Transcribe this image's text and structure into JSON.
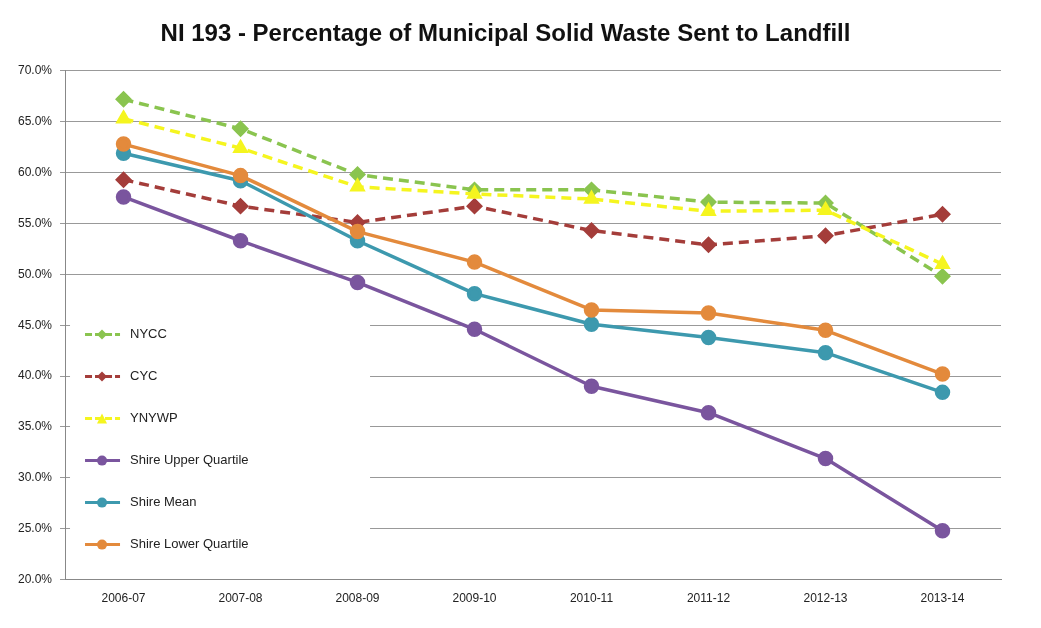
{
  "chart_data": {
    "type": "line",
    "title": "NI 193 - Percentage of Municipal Solid Waste Sent to Landfill",
    "categories": [
      "2006-07",
      "2007-08",
      "2008-09",
      "2009-10",
      "2010-11",
      "2011-12",
      "2012-13",
      "2013-14"
    ],
    "ylim": [
      20,
      70
    ],
    "yticks": [
      {
        "value": 20,
        "label": "20.0%"
      },
      {
        "value": 25,
        "label": "25.0%"
      },
      {
        "value": 30,
        "label": "30.0%"
      },
      {
        "value": 35,
        "label": "35.0%"
      },
      {
        "value": 40,
        "label": "40.0%"
      },
      {
        "value": 45,
        "label": "45.0%"
      },
      {
        "value": 50,
        "label": "50.0%"
      },
      {
        "value": 55,
        "label": "55.0%"
      },
      {
        "value": 60,
        "label": "60.0%"
      },
      {
        "value": 65,
        "label": "65.0%"
      },
      {
        "value": 70,
        "label": "70.0%"
      }
    ],
    "grid": "y",
    "legend": "bottom left",
    "series": [
      {
        "name": "NYCC",
        "color": "#8ac44f",
        "marker": "diamond",
        "line_style": "dashed",
        "values": [
          67.2,
          64.3,
          59.8,
          58.3,
          58.3,
          57.1,
          57.0,
          49.8
        ]
      },
      {
        "name": "CYC",
        "color": "#a43d3a",
        "marker": "diamond",
        "line_style": "dashed",
        "values": [
          59.3,
          56.7,
          55.1,
          56.7,
          54.3,
          52.9,
          53.8,
          55.9
        ]
      },
      {
        "name": "YNYWP",
        "color": "#f5f51f",
        "marker": "triangle",
        "line_style": "dashed",
        "values": [
          65.3,
          62.4,
          58.6,
          57.9,
          57.4,
          56.2,
          56.3,
          51.0
        ]
      },
      {
        "name": "Shire Upper Quartile",
        "color": "#7a559e",
        "marker": "circle",
        "line_style": "solid",
        "values": [
          57.6,
          53.3,
          49.2,
          44.6,
          39.0,
          36.4,
          31.9,
          24.8
        ]
      },
      {
        "name": "Shire Mean",
        "color": "#3d99ae",
        "marker": "circle",
        "line_style": "solid",
        "values": [
          61.9,
          59.2,
          53.3,
          48.1,
          45.1,
          43.8,
          42.3,
          38.4
        ]
      },
      {
        "name": "Shire Lower Quartile",
        "color": "#e38a3c",
        "marker": "circle",
        "line_style": "solid",
        "values": [
          62.8,
          59.7,
          54.2,
          51.2,
          46.5,
          46.2,
          44.5,
          40.2
        ]
      }
    ]
  }
}
